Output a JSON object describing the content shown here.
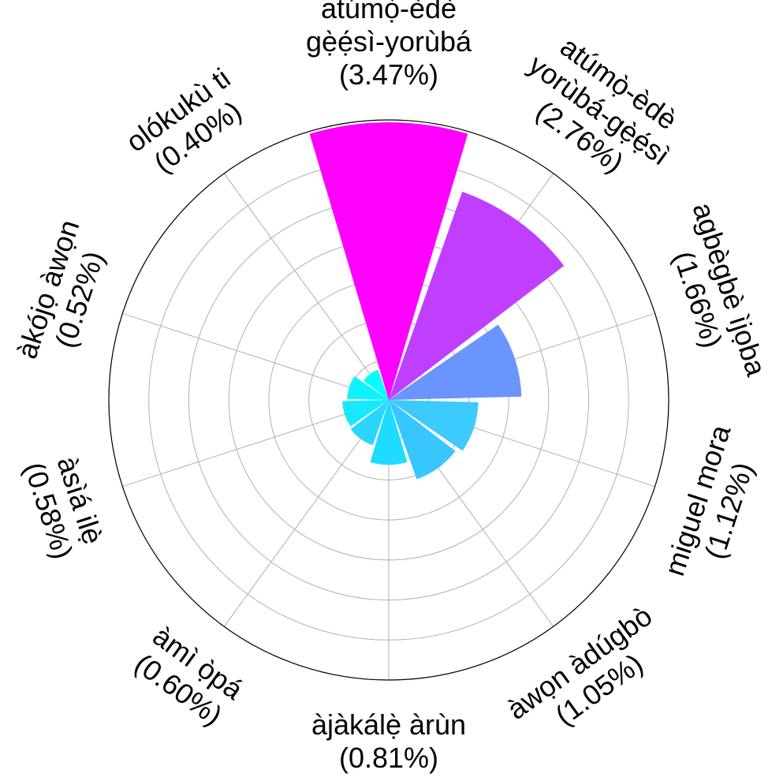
{
  "chart_data": {
    "type": "polar-bar",
    "categories": [
      "atúmọ̀-èdè gẹ̀ẹ́sì-yorùbá",
      "atúmọ̀-èdè yorùbá-gẹ̀ẹ́sì",
      "agbègbè ìjọba",
      "miguel mora",
      "àwọn àdúgbò",
      "àjàkálẹ̀ àrùn",
      "àmì ọ̀pá",
      "àsìá ilẹ̀",
      "àkójọ àwọn",
      "olókukù ti"
    ],
    "values": [
      3.47,
      2.76,
      1.66,
      1.12,
      1.05,
      0.81,
      0.6,
      0.58,
      0.52,
      0.4
    ],
    "labels": [
      [
        "atúmọ̀-èdè",
        "gẹ̀ẹ́sì-yorùbá",
        "(3.47%)"
      ],
      [
        "atúmọ̀-èdè",
        "yorùbá-gẹ̀ẹ́sì",
        "(2.76%)"
      ],
      [
        "agbègbè ìjọba",
        "(1.66%)"
      ],
      [
        "miguel mora",
        "(1.12%)"
      ],
      [
        "àwọn àdúgbò",
        "(1.05%)"
      ],
      [
        "àjàkálẹ̀ àrùn",
        "(0.81%)"
      ],
      [
        "àmì ọ̀pá",
        "(0.60%)"
      ],
      [
        "àsìá ilẹ̀",
        "(0.58%)"
      ],
      [
        "àkójọ àwọn",
        "(0.52%)"
      ],
      [
        "olókukù ti",
        "(0.40%)"
      ]
    ],
    "colors": [
      "#ff00ff",
      "#c03fff",
      "#6a95ff",
      "#3ccaff",
      "#38c6ff",
      "#1edbff",
      "#2ad5ff",
      "#16e9ff",
      "#0ef1ff",
      "#00ffff"
    ],
    "radial_max": 3.5,
    "radial_gridlines": 7,
    "angular_gridlines": 10,
    "direction": "clockwise",
    "start": "top",
    "grid": true,
    "radial_tick_labels": false
  }
}
